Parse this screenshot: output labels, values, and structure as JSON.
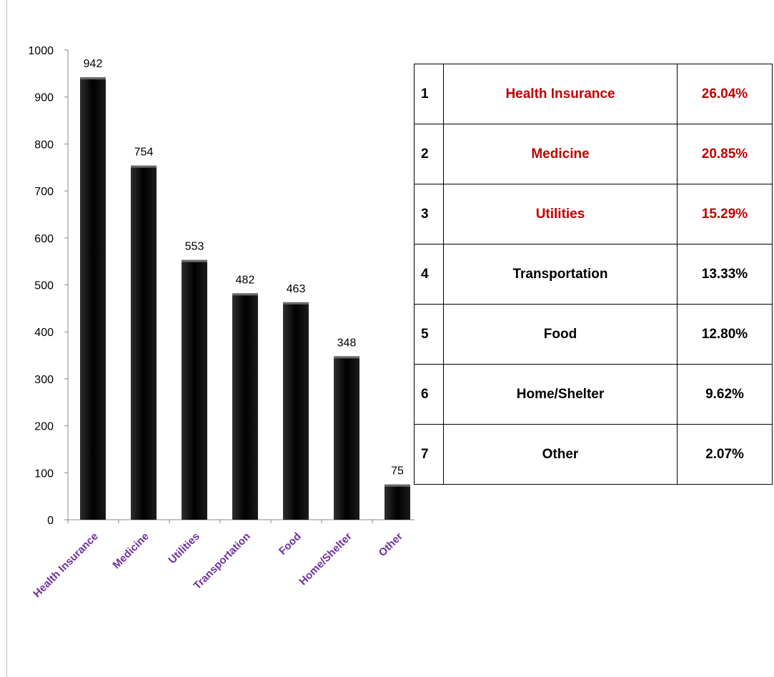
{
  "chart_data": {
    "type": "bar",
    "categories": [
      "Health Insurance",
      "Medicine",
      "Utilities",
      "Transportation",
      "Food",
      "Home/Shelter",
      "Other"
    ],
    "values": [
      942,
      754,
      553,
      482,
      463,
      348,
      75
    ],
    "data_labels": [
      "942",
      "754",
      "553",
      "482",
      "463",
      "348",
      "75"
    ],
    "y_ticks": [
      0,
      100,
      200,
      300,
      400,
      500,
      600,
      700,
      800,
      900,
      1000
    ],
    "ylim": [
      0,
      1000
    ],
    "grid": false,
    "legend": "none",
    "bar_color": "#000000",
    "tick_label_color": "#7030a0"
  },
  "rank_table": {
    "highlight_color": "#c00000",
    "rows": [
      {
        "rank": "1",
        "category": "Health Insurance",
        "percent": "26.04%",
        "highlight": true
      },
      {
        "rank": "2",
        "category": "Medicine",
        "percent": "20.85%",
        "highlight": true
      },
      {
        "rank": "3",
        "category": "Utilities",
        "percent": "15.29%",
        "highlight": true
      },
      {
        "rank": "4",
        "category": "Transportation",
        "percent": "13.33%",
        "highlight": false
      },
      {
        "rank": "5",
        "category": "Food",
        "percent": "12.80%",
        "highlight": false
      },
      {
        "rank": "6",
        "category": "Home/Shelter",
        "percent": "9.62%",
        "highlight": false
      },
      {
        "rank": "7",
        "category": "Other",
        "percent": "2.07%",
        "highlight": false
      }
    ]
  }
}
